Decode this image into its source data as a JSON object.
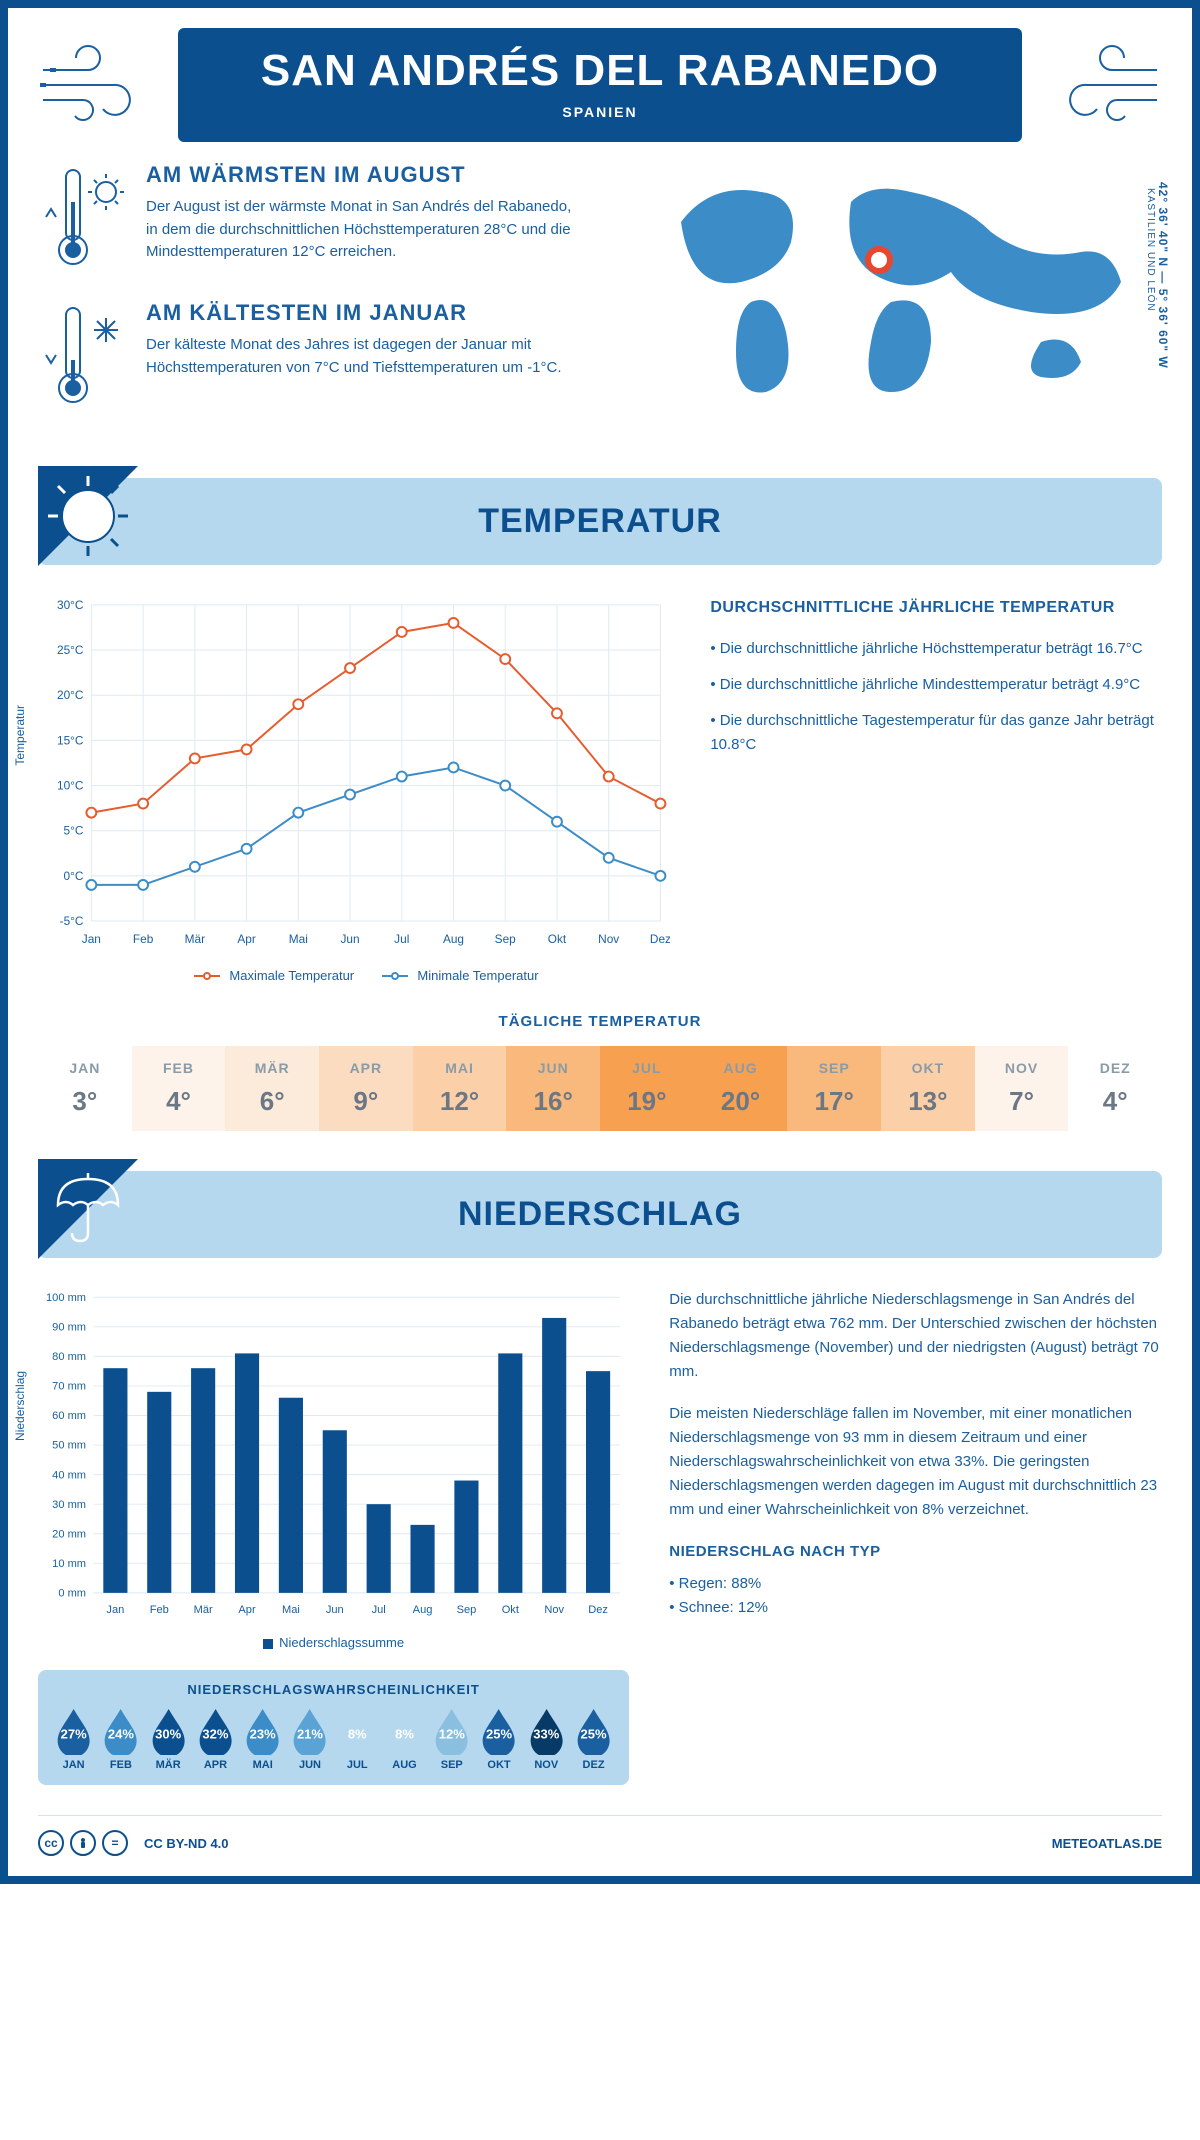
{
  "header": {
    "title": "SAN ANDRÉS DEL RABANEDO",
    "subtitle": "SPANIEN"
  },
  "intro": {
    "warmest": {
      "heading": "AM WÄRMSTEN IM AUGUST",
      "text": "Der August ist der wärmste Monat in San Andrés del Rabanedo, in dem die durchschnittlichen Höchsttemperaturen 28°C und die Mindesttemperaturen 12°C erreichen."
    },
    "coldest": {
      "heading": "AM KÄLTESTEN IM JANUAR",
      "text": "Der kälteste Monat des Jahres ist dagegen der Januar mit Höchsttemperaturen von 7°C und Tiefsttemperaturen um -1°C."
    },
    "coords": "42° 36' 40\" N — 5° 36' 60\" W",
    "region": "KASTILIEN UND LEÓN"
  },
  "temperature_section_title": "TEMPERATUR",
  "temperature_chart": {
    "type": "line",
    "months": [
      "Jan",
      "Feb",
      "Mär",
      "Apr",
      "Mai",
      "Jun",
      "Jul",
      "Aug",
      "Sep",
      "Okt",
      "Nov",
      "Dez"
    ],
    "max_series": [
      7,
      8,
      13,
      14,
      19,
      23,
      27,
      28,
      24,
      18,
      11,
      8
    ],
    "min_series": [
      -1,
      -1,
      1,
      3,
      7,
      9,
      11,
      12,
      10,
      6,
      2,
      0
    ],
    "max_color": "#e65c2e",
    "min_color": "#3c8cc8",
    "grid_color": "#dfeaf2",
    "background": "#ffffff",
    "ylim": [
      -5,
      30
    ],
    "ytick_step": 5,
    "y_label": "Temperatur",
    "legend_max": "Maximale Temperatur",
    "legend_min": "Minimale Temperatur",
    "line_width": 2,
    "marker": "circle",
    "marker_size": 5
  },
  "temperature_summary": {
    "heading": "DURCHSCHNITTLICHE JÄHRLICHE TEMPERATUR",
    "b1": "• Die durchschnittliche jährliche Höchsttemperatur beträgt 16.7°C",
    "b2": "• Die durchschnittliche jährliche Mindesttemperatur beträgt 4.9°C",
    "b3": "• Die durchschnittliche Tagestemperatur für das ganze Jahr beträgt 10.8°C"
  },
  "daily_temp": {
    "heading": "TÄGLICHE TEMPERATUR",
    "months": [
      "JAN",
      "FEB",
      "MÄR",
      "APR",
      "MAI",
      "JUN",
      "JUL",
      "AUG",
      "SEP",
      "OKT",
      "NOV",
      "DEZ"
    ],
    "values": [
      "3°",
      "4°",
      "6°",
      "9°",
      "12°",
      "16°",
      "19°",
      "20°",
      "17°",
      "13°",
      "7°",
      "4°"
    ],
    "cell_bg": [
      "#ffffff",
      "#fdf3ea",
      "#fceadb",
      "#fbdcc1",
      "#fbcfa7",
      "#f9b97c",
      "#f6a050",
      "#f6a050",
      "#f9b97c",
      "#fbcfa7",
      "#fdf3ea",
      "#ffffff"
    ]
  },
  "precip_section_title": "NIEDERSCHLAG",
  "precip_chart": {
    "type": "bar",
    "months": [
      "Jan",
      "Feb",
      "Mär",
      "Apr",
      "Mai",
      "Jun",
      "Jul",
      "Aug",
      "Sep",
      "Okt",
      "Nov",
      "Dez"
    ],
    "values": [
      76,
      68,
      76,
      81,
      66,
      55,
      30,
      23,
      38,
      81,
      93,
      75
    ],
    "bar_color": "#0b4f8f",
    "grid_color": "#dfeaf2",
    "ylim": [
      0,
      100
    ],
    "ytick_step": 10,
    "y_label": "Niederschlag",
    "legend": "Niederschlagssumme",
    "y_unit": " mm",
    "bar_width": 0.55
  },
  "precip_text": {
    "p1": "Die durchschnittliche jährliche Niederschlagsmenge in San Andrés del Rabanedo beträgt etwa 762 mm. Der Unterschied zwischen der höchsten Niederschlagsmenge (November) und der niedrigsten (August) beträgt 70 mm.",
    "p2": "Die meisten Niederschläge fallen im November, mit einer monatlichen Niederschlagsmenge von 93 mm in diesem Zeitraum und einer Niederschlagswahrscheinlichkeit von etwa 33%. Die geringsten Niederschlagsmengen werden dagegen im August mit durchschnittlich 23 mm und einer Wahrscheinlichkeit von 8% verzeichnet.",
    "type_heading": "NIEDERSCHLAG NACH TYP",
    "rain": "• Regen: 88%",
    "snow": "• Schnee: 12%"
  },
  "probability": {
    "heading": "NIEDERSCHLAGSWAHRSCHEINLICHKEIT",
    "months": [
      "JAN",
      "FEB",
      "MÄR",
      "APR",
      "MAI",
      "JUN",
      "JUL",
      "AUG",
      "SEP",
      "OKT",
      "NOV",
      "DEZ"
    ],
    "values": [
      27,
      24,
      30,
      32,
      23,
      21,
      8,
      8,
      12,
      25,
      33,
      25
    ],
    "drop_colors": [
      "#1a5fa0",
      "#3c8cc8",
      "#0b4f8f",
      "#0b4f8f",
      "#3c8cc8",
      "#5ba3d4",
      "#b6d8ee",
      "#b6d8ee",
      "#8abfe0",
      "#1a5fa0",
      "#083a68",
      "#1a5fa0"
    ]
  },
  "footer": {
    "license": "CC BY-ND 4.0",
    "site": "METEOATLAS.DE"
  },
  "colors": {
    "primary": "#0b4f8f",
    "light_blue": "#b6d8ee"
  }
}
